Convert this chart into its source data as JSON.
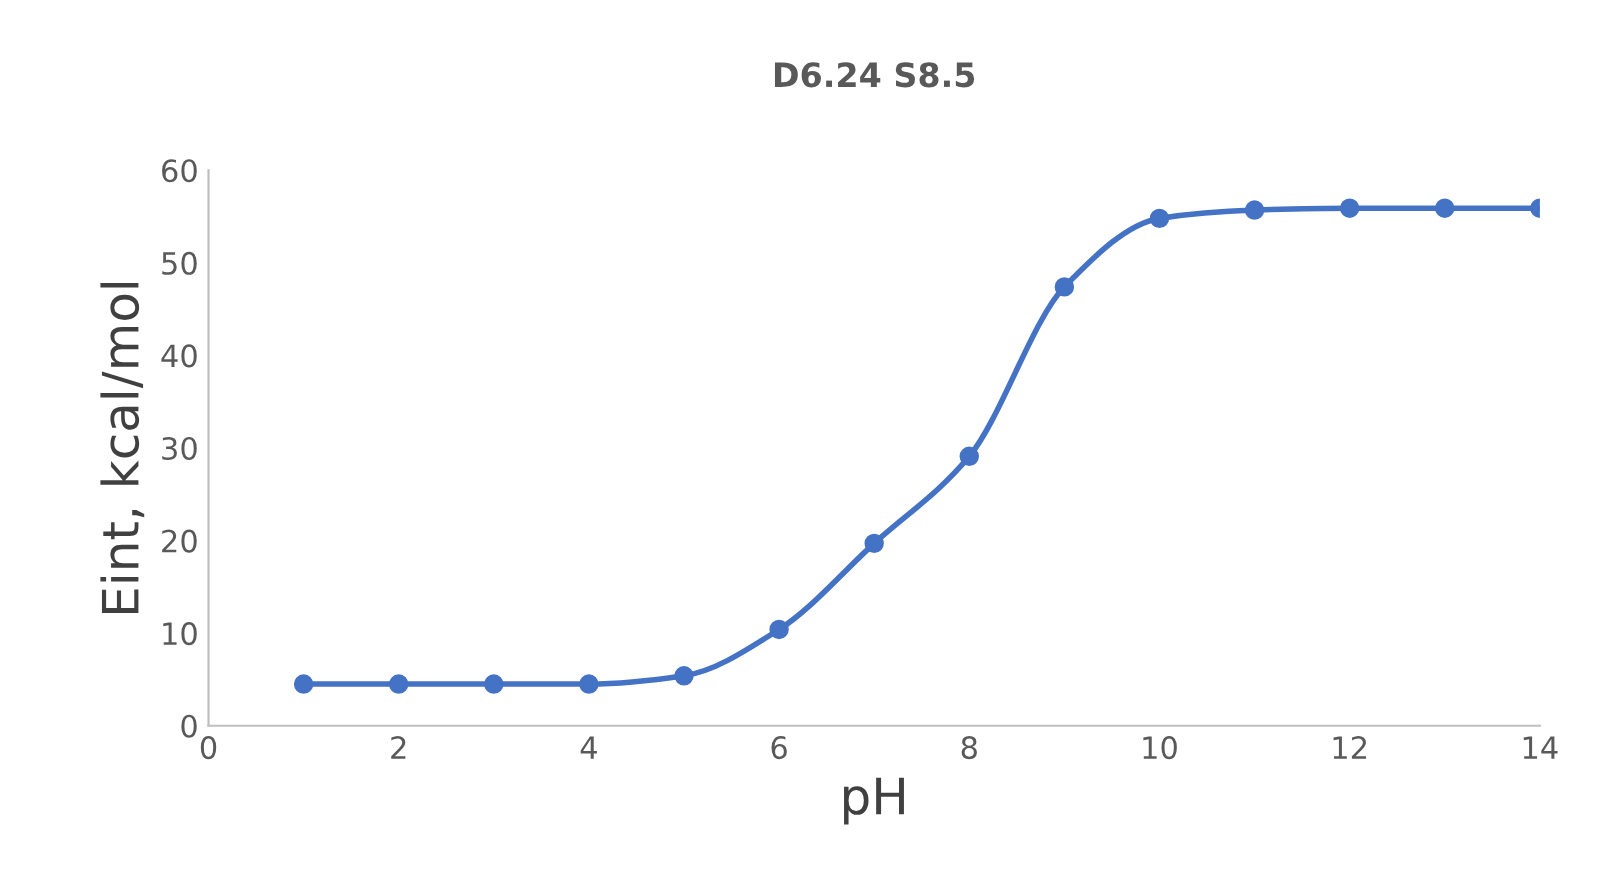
{
  "chart_data": {
    "type": "line",
    "title": "D6.24 S8.5",
    "xlabel": "pH",
    "ylabel": "Eint, kcal/mol",
    "x": [
      1,
      2,
      3,
      4,
      5,
      6,
      7,
      8,
      9,
      10,
      11,
      12,
      13,
      14
    ],
    "series": [
      {
        "color": "#4472c4",
        "values": [
          4.5,
          4.5,
          4.5,
          4.5,
          5.4,
          10.4,
          19.7,
          29.1,
          47.4,
          54.8,
          55.7,
          55.9,
          55.9,
          55.9
        ]
      }
    ],
    "xlim": [
      0,
      14
    ],
    "xticks": [
      0,
      2,
      4,
      6,
      8,
      10,
      12,
      14
    ],
    "ylim": [
      0,
      60
    ],
    "yticks": [
      0,
      10,
      20,
      30,
      40,
      50,
      60
    ],
    "grid": false,
    "legend": false,
    "marker": "circle",
    "line_style": "solid"
  }
}
